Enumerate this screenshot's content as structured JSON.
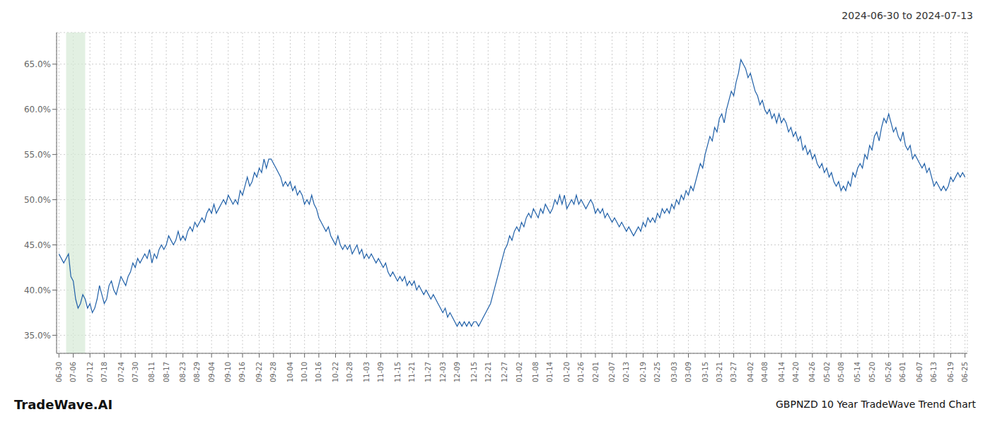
{
  "chart_data": {
    "type": "line",
    "title": "GBPNZD 10 Year TradeWave Trend Chart",
    "subtitle": "2024-06-30 to 2024-07-13",
    "annotation": "TradeWave.AI",
    "color": "#2060a8",
    "grid": true,
    "highlight": {
      "range": [
        3,
        11
      ],
      "color": "#d6ead6"
    },
    "xlim": [
      -1,
      381
    ],
    "xticks": [
      {
        "value": 0,
        "label": "06-30"
      },
      {
        "value": 6,
        "label": "07-06"
      },
      {
        "value": 13,
        "label": "07-12"
      },
      {
        "value": 19,
        "label": "07-18"
      },
      {
        "value": 26,
        "label": "07-24"
      },
      {
        "value": 32,
        "label": "07-30"
      },
      {
        "value": 39,
        "label": "08-11"
      },
      {
        "value": 45,
        "label": "08-17"
      },
      {
        "value": 52,
        "label": "08-23"
      },
      {
        "value": 58,
        "label": "08-29"
      },
      {
        "value": 64,
        "label": "09-04"
      },
      {
        "value": 71,
        "label": "09-10"
      },
      {
        "value": 77,
        "label": "09-16"
      },
      {
        "value": 84,
        "label": "09-22"
      },
      {
        "value": 90,
        "label": "09-28"
      },
      {
        "value": 97,
        "label": "10-04"
      },
      {
        "value": 103,
        "label": "10-10"
      },
      {
        "value": 109,
        "label": "10-16"
      },
      {
        "value": 116,
        "label": "10-22"
      },
      {
        "value": 122,
        "label": "10-28"
      },
      {
        "value": 129,
        "label": "11-03"
      },
      {
        "value": 135,
        "label": "11-09"
      },
      {
        "value": 142,
        "label": "11-15"
      },
      {
        "value": 148,
        "label": "11-21"
      },
      {
        "value": 155,
        "label": "11-27"
      },
      {
        "value": 161,
        "label": "12-03"
      },
      {
        "value": 167,
        "label": "12-09"
      },
      {
        "value": 174,
        "label": "12-15"
      },
      {
        "value": 180,
        "label": "12-21"
      },
      {
        "value": 187,
        "label": "12-27"
      },
      {
        "value": 193,
        "label": "01-02"
      },
      {
        "value": 200,
        "label": "01-08"
      },
      {
        "value": 206,
        "label": "01-14"
      },
      {
        "value": 213,
        "label": "01-20"
      },
      {
        "value": 219,
        "label": "01-26"
      },
      {
        "value": 225,
        "label": "02-01"
      },
      {
        "value": 232,
        "label": "02-07"
      },
      {
        "value": 238,
        "label": "02-13"
      },
      {
        "value": 245,
        "label": "02-19"
      },
      {
        "value": 251,
        "label": "02-25"
      },
      {
        "value": 258,
        "label": "03-03"
      },
      {
        "value": 264,
        "label": "03-09"
      },
      {
        "value": 271,
        "label": "03-15"
      },
      {
        "value": 277,
        "label": "03-21"
      },
      {
        "value": 283,
        "label": "03-27"
      },
      {
        "value": 290,
        "label": "04-02"
      },
      {
        "value": 296,
        "label": "04-08"
      },
      {
        "value": 303,
        "label": "04-14"
      },
      {
        "value": 309,
        "label": "04-20"
      },
      {
        "value": 316,
        "label": "04-26"
      },
      {
        "value": 322,
        "label": "05-02"
      },
      {
        "value": 328,
        "label": "05-08"
      },
      {
        "value": 335,
        "label": "05-14"
      },
      {
        "value": 341,
        "label": "05-20"
      },
      {
        "value": 348,
        "label": "05-26"
      },
      {
        "value": 354,
        "label": "06-01"
      },
      {
        "value": 361,
        "label": "06-07"
      },
      {
        "value": 367,
        "label": "06-13"
      },
      {
        "value": 374,
        "label": "06-19"
      },
      {
        "value": 380,
        "label": "06-25"
      }
    ],
    "ylim": [
      33.0,
      68.5
    ],
    "yticks": [
      {
        "value": 35.0,
        "label": "35.0%"
      },
      {
        "value": 40.0,
        "label": "40.0%"
      },
      {
        "value": 45.0,
        "label": "45.0%"
      },
      {
        "value": 50.0,
        "label": "50.0%"
      },
      {
        "value": 55.0,
        "label": "55.0%"
      },
      {
        "value": 60.0,
        "label": "60.0%"
      },
      {
        "value": 65.0,
        "label": "65.0%"
      }
    ],
    "values": [
      44.0,
      43.5,
      43.0,
      43.5,
      44.0,
      41.5,
      41.0,
      39.0,
      38.0,
      38.5,
      39.5,
      39.0,
      38.0,
      38.5,
      37.5,
      38.0,
      39.0,
      40.5,
      39.5,
      38.5,
      39.0,
      40.5,
      41.0,
      40.0,
      39.5,
      40.5,
      41.5,
      41.0,
      40.5,
      41.5,
      42.0,
      43.0,
      42.5,
      43.5,
      43.0,
      43.5,
      44.0,
      43.5,
      44.5,
      43.0,
      44.0,
      43.5,
      44.5,
      45.0,
      44.5,
      45.0,
      46.0,
      45.5,
      45.0,
      45.5,
      46.5,
      45.5,
      46.0,
      45.5,
      46.5,
      47.0,
      46.5,
      47.5,
      47.0,
      47.5,
      48.0,
      47.5,
      48.5,
      49.0,
      48.5,
      49.5,
      48.5,
      49.0,
      49.5,
      50.0,
      49.5,
      50.5,
      50.0,
      49.5,
      50.0,
      49.5,
      51.0,
      50.5,
      51.5,
      52.5,
      51.5,
      52.0,
      53.0,
      52.5,
      53.5,
      53.0,
      54.5,
      53.5,
      54.5,
      54.5,
      54.0,
      53.5,
      53.0,
      52.5,
      51.5,
      52.0,
      51.5,
      52.0,
      51.0,
      51.5,
      50.5,
      51.0,
      50.5,
      49.5,
      50.0,
      49.5,
      50.5,
      49.5,
      49.0,
      48.0,
      47.5,
      47.0,
      46.5,
      47.0,
      46.0,
      45.5,
      45.0,
      46.0,
      45.0,
      44.5,
      45.0,
      44.5,
      45.0,
      44.0,
      44.5,
      45.0,
      44.0,
      44.5,
      43.5,
      44.0,
      43.5,
      44.0,
      43.5,
      43.0,
      43.5,
      43.0,
      42.5,
      43.0,
      42.0,
      41.5,
      42.0,
      41.5,
      41.0,
      41.5,
      41.0,
      41.5,
      40.5,
      41.0,
      40.5,
      41.0,
      40.0,
      40.5,
      40.0,
      39.5,
      40.0,
      39.5,
      39.0,
      39.5,
      39.0,
      38.5,
      38.0,
      37.5,
      38.0,
      37.0,
      37.5,
      37.0,
      36.5,
      36.0,
      36.5,
      36.0,
      36.5,
      36.0,
      36.5,
      36.0,
      36.5,
      36.5,
      36.0,
      36.5,
      37.0,
      37.5,
      38.0,
      38.5,
      39.5,
      40.5,
      41.5,
      42.5,
      43.5,
      44.5,
      45.0,
      46.0,
      45.5,
      46.5,
      47.0,
      46.5,
      47.5,
      47.0,
      48.0,
      48.5,
      48.0,
      49.0,
      48.5,
      48.0,
      49.0,
      48.5,
      49.5,
      49.0,
      48.5,
      49.0,
      50.0,
      49.5,
      50.5,
      49.5,
      50.5,
      49.0,
      49.5,
      50.0,
      49.5,
      50.5,
      49.5,
      50.0,
      49.5,
      49.0,
      49.5,
      50.0,
      49.5,
      48.5,
      49.0,
      48.5,
      49.0,
      48.0,
      48.5,
      48.0,
      47.5,
      48.0,
      47.5,
      47.0,
      47.5,
      47.0,
      46.5,
      47.0,
      46.5,
      46.0,
      46.5,
      47.0,
      46.5,
      47.5,
      47.0,
      48.0,
      47.5,
      48.0,
      47.5,
      48.5,
      48.0,
      49.0,
      48.5,
      49.0,
      48.5,
      49.5,
      49.0,
      50.0,
      49.5,
      50.5,
      50.0,
      51.0,
      50.5,
      51.5,
      51.0,
      52.0,
      53.0,
      54.0,
      53.5,
      55.0,
      56.0,
      57.0,
      56.5,
      58.0,
      57.5,
      59.0,
      59.5,
      58.5,
      60.0,
      61.0,
      62.0,
      61.5,
      63.0,
      64.0,
      65.5,
      65.0,
      64.5,
      63.5,
      64.0,
      63.0,
      62.0,
      61.5,
      60.5,
      61.0,
      60.0,
      59.5,
      60.0,
      59.0,
      59.5,
      58.5,
      59.5,
      58.5,
      59.0,
      58.5,
      57.5,
      58.0,
      57.0,
      57.5,
      56.5,
      57.0,
      55.5,
      56.0,
      55.0,
      55.5,
      54.5,
      55.0,
      54.0,
      53.5,
      54.0,
      53.0,
      53.5,
      52.5,
      53.0,
      52.0,
      51.5,
      52.0,
      51.0,
      51.5,
      51.0,
      52.0,
      51.5,
      53.0,
      52.5,
      53.5,
      54.0,
      53.5,
      55.0,
      54.5,
      56.0,
      55.5,
      57.0,
      57.5,
      56.5,
      58.0,
      59.0,
      58.5,
      59.5,
      58.5,
      57.5,
      58.0,
      57.0,
      56.5,
      57.5,
      56.0,
      55.5,
      56.0,
      54.5,
      55.0,
      54.5,
      54.0,
      53.5,
      54.0,
      53.0,
      53.5,
      52.5,
      51.5,
      52.0,
      51.5,
      51.0,
      51.5,
      51.0,
      51.5,
      52.5,
      52.0,
      52.5,
      53.0,
      52.5,
      53.0,
      52.5
    ]
  }
}
